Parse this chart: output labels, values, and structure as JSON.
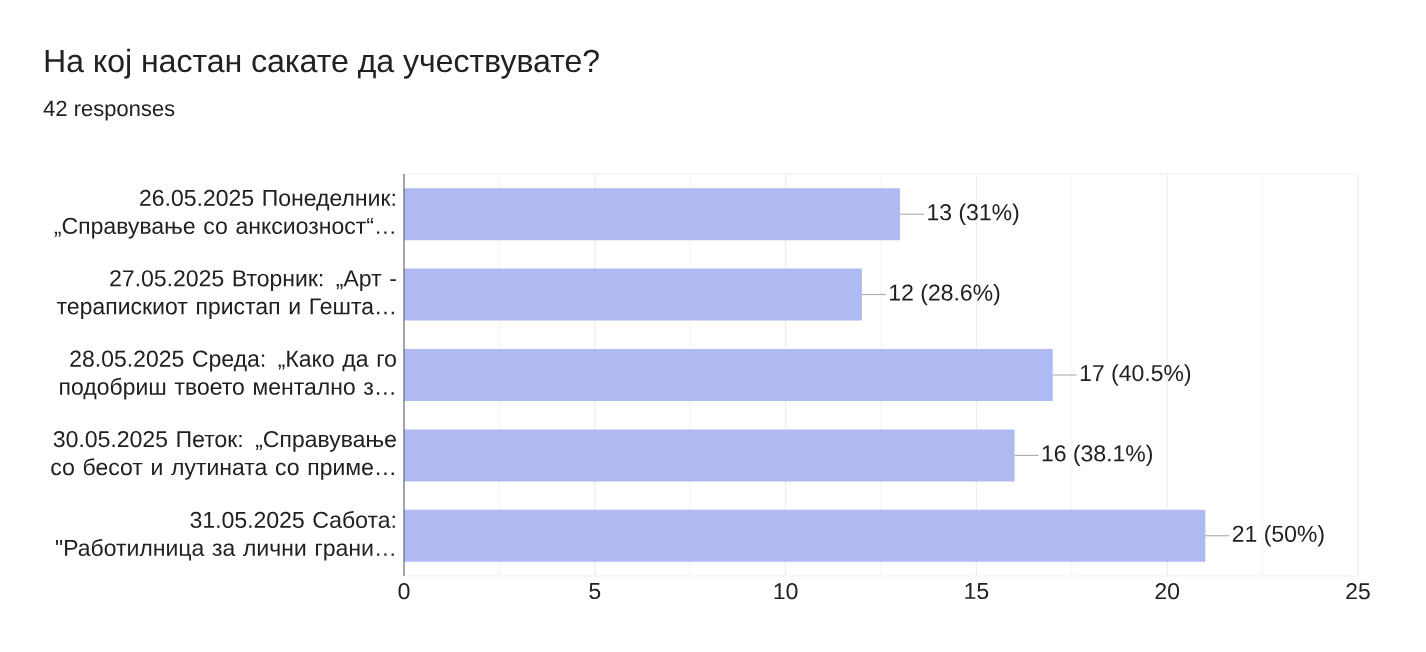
{
  "chart_data": {
    "type": "bar",
    "orientation": "horizontal",
    "title": "На кој настан сакате да учествувате?",
    "subtitle": "42 responses",
    "categories": [
      "26.05.2025 Понеделник: „Справување со анксиозност“…",
      "27.05.2025 Вторник: „Арт - терапискиот пристап и Гешта…",
      "28.05.2025 Среда: „Како да го подобриш твоето ментално з…",
      "30.05.2025 Петок: „Справување со бесот и лутината со приме…",
      "31.05.2025 Сабота: \"Работилница за лични грани…"
    ],
    "values": [
      13,
      12,
      17,
      16,
      21
    ],
    "value_labels": [
      "13 (31%)",
      "12 (28.6%)",
      "17 (40.5%)",
      "16 (38.1%)",
      "21 (50%)"
    ],
    "color": "#afbaf2",
    "xlim": [
      0,
      25
    ],
    "xticks": [
      0,
      5,
      10,
      15,
      20,
      25
    ],
    "grid": "x"
  }
}
